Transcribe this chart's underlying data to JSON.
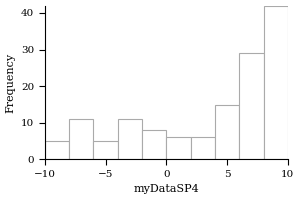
{
  "title": "",
  "xlabel": "myDataSP4",
  "ylabel": "Frequency",
  "bin_edges": [
    -10,
    -8,
    -6,
    -4,
    -2,
    0,
    2,
    4,
    6,
    8,
    10
  ],
  "counts": [
    5,
    11,
    5,
    11,
    8,
    6,
    6,
    15,
    29,
    42
  ],
  "xlim": [
    -10,
    10
  ],
  "ylim": [
    0,
    42
  ],
  "xticks": [
    -10,
    -5,
    0,
    5,
    10
  ],
  "yticks": [
    0,
    10,
    20,
    30,
    40
  ],
  "bar_color": "white",
  "bar_edgecolor": "#aaaaaa",
  "background_color": "white",
  "axes_background": "white",
  "label_fontsize": 8,
  "tick_fontsize": 7.5
}
